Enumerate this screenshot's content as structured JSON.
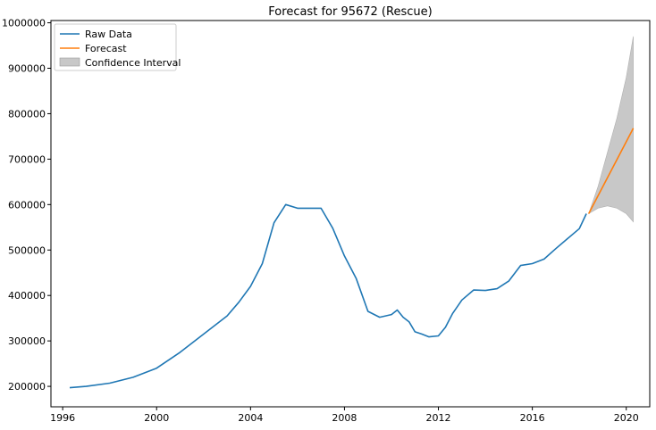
{
  "chart_data": {
    "type": "line",
    "title": "Forecast for 95672 (Rescue)",
    "xlabel": "",
    "ylabel": "",
    "xlim": [
      1995.5,
      2021.0
    ],
    "ylim": [
      155000,
      1005000
    ],
    "x_ticks": [
      1996,
      2000,
      2004,
      2008,
      2012,
      2016,
      2020
    ],
    "x_tick_labels": [
      "1996",
      "2000",
      "2004",
      "2008",
      "2012",
      "2016",
      "2020"
    ],
    "y_ticks": [
      200000,
      300000,
      400000,
      500000,
      600000,
      700000,
      800000,
      900000,
      1000000
    ],
    "y_tick_labels": [
      "200000",
      "300000",
      "400000",
      "500000",
      "600000",
      "700000",
      "800000",
      "900000",
      "1000000"
    ],
    "grid": false,
    "legend_position": "top-left",
    "series": [
      {
        "name": "Raw Data",
        "color": "#1f77b4",
        "x": [
          1996.3,
          1997.0,
          1998.0,
          1999.0,
          2000.0,
          2001.0,
          2002.0,
          2003.0,
          2003.5,
          2004.0,
          2004.5,
          2005.0,
          2005.5,
          2006.0,
          2006.5,
          2007.0,
          2007.5,
          2008.0,
          2008.5,
          2009.0,
          2009.5,
          2010.0,
          2010.25,
          2010.5,
          2010.75,
          2011.0,
          2011.3,
          2011.6,
          2012.0,
          2012.3,
          2012.6,
          2013.0,
          2013.5,
          2014.0,
          2014.5,
          2015.0,
          2015.5,
          2016.0,
          2016.5,
          2017.0,
          2017.5,
          2018.0,
          2018.3
        ],
        "y": [
          197000,
          200000,
          207000,
          220000,
          240000,
          275000,
          315000,
          355000,
          385000,
          420000,
          470000,
          560000,
          600000,
          592000,
          592000,
          592000,
          548000,
          487000,
          437000,
          365000,
          352000,
          358000,
          368000,
          352000,
          342000,
          320000,
          315000,
          309000,
          311000,
          330000,
          360000,
          390000,
          412000,
          411000,
          415000,
          432000,
          466000,
          470000,
          480000,
          503000,
          525000,
          547000,
          580000
        ]
      },
      {
        "name": "Forecast",
        "color": "#ff7f0e",
        "x": [
          2018.4,
          2020.3
        ],
        "y": [
          580000,
          768000
        ]
      },
      {
        "name": "Confidence Interval",
        "color": "#c8c8c8",
        "x": [
          2018.4,
          2018.8,
          2019.2,
          2019.6,
          2020.0,
          2020.3
        ],
        "upper": [
          580000,
          640000,
          715000,
          790000,
          880000,
          970000
        ],
        "lower": [
          580000,
          592000,
          597000,
          592000,
          580000,
          562000
        ]
      }
    ]
  }
}
